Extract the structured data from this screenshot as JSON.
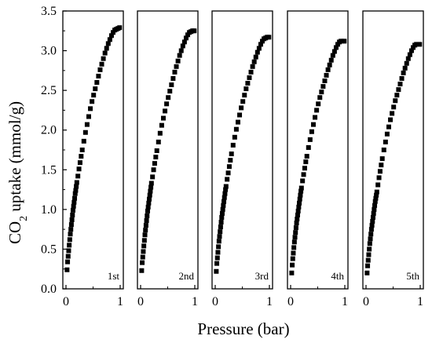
{
  "chart_data": {
    "type": "scatter",
    "ylabel_main": "CO",
    "ylabel_sub": "2",
    "ylabel_rest": " uptake (mmol/g)",
    "xlabel": "Pressure (bar)",
    "ylim": [
      0,
      3.5
    ],
    "xlim": [
      0,
      1
    ],
    "yticks": [
      "0.0",
      "0.5",
      "1.0",
      "1.5",
      "2.0",
      "2.5",
      "3.0",
      "3.5"
    ],
    "xticks": [
      "0",
      "1"
    ],
    "marker": "square",
    "grid": false,
    "panels": [
      {
        "label": "1st",
        "y_end": 3.29,
        "x": [
          0.02,
          0.03,
          0.04,
          0.05,
          0.06,
          0.07,
          0.08,
          0.09,
          0.1,
          0.11,
          0.12,
          0.13,
          0.14,
          0.15,
          0.16,
          0.17,
          0.18,
          0.19,
          0.2,
          0.22,
          0.24,
          0.26,
          0.28,
          0.3,
          0.33,
          0.36,
          0.39,
          0.42,
          0.45,
          0.48,
          0.51,
          0.54,
          0.57,
          0.6,
          0.63,
          0.66,
          0.69,
          0.72,
          0.75,
          0.78,
          0.81,
          0.84,
          0.87,
          0.9,
          0.93,
          0.96,
          0.99
        ],
        "y": [
          0.24,
          0.34,
          0.41,
          0.48,
          0.55,
          0.62,
          0.69,
          0.75,
          0.81,
          0.87,
          0.93,
          0.99,
          1.04,
          1.09,
          1.14,
          1.2,
          1.24,
          1.29,
          1.34,
          1.42,
          1.51,
          1.59,
          1.67,
          1.75,
          1.86,
          1.97,
          2.07,
          2.17,
          2.27,
          2.36,
          2.44,
          2.52,
          2.6,
          2.68,
          2.76,
          2.83,
          2.9,
          2.97,
          3.03,
          3.09,
          3.14,
          3.19,
          3.23,
          3.26,
          3.27,
          3.28,
          3.29
        ]
      },
      {
        "label": "2nd",
        "y_end": 3.25,
        "x": [
          0.02,
          0.03,
          0.04,
          0.05,
          0.06,
          0.07,
          0.08,
          0.09,
          0.1,
          0.11,
          0.12,
          0.13,
          0.14,
          0.15,
          0.16,
          0.17,
          0.18,
          0.19,
          0.2,
          0.22,
          0.24,
          0.26,
          0.28,
          0.3,
          0.33,
          0.36,
          0.39,
          0.42,
          0.45,
          0.48,
          0.51,
          0.54,
          0.57,
          0.6,
          0.63,
          0.66,
          0.69,
          0.72,
          0.75,
          0.78,
          0.81,
          0.84,
          0.87,
          0.9,
          0.93,
          0.96,
          0.99
        ],
        "y": [
          0.23,
          0.33,
          0.4,
          0.47,
          0.54,
          0.61,
          0.68,
          0.74,
          0.8,
          0.86,
          0.92,
          0.98,
          1.03,
          1.08,
          1.13,
          1.18,
          1.23,
          1.28,
          1.33,
          1.41,
          1.5,
          1.58,
          1.66,
          1.74,
          1.85,
          1.96,
          2.06,
          2.15,
          2.24,
          2.33,
          2.41,
          2.49,
          2.57,
          2.65,
          2.73,
          2.8,
          2.87,
          2.94,
          3.0,
          3.06,
          3.11,
          3.16,
          3.2,
          3.23,
          3.24,
          3.25,
          3.25
        ]
      },
      {
        "label": "3rd",
        "y_end": 3.17,
        "x": [
          0.02,
          0.03,
          0.04,
          0.05,
          0.06,
          0.07,
          0.08,
          0.09,
          0.1,
          0.11,
          0.12,
          0.13,
          0.14,
          0.15,
          0.16,
          0.17,
          0.18,
          0.19,
          0.2,
          0.22,
          0.24,
          0.26,
          0.28,
          0.3,
          0.33,
          0.36,
          0.39,
          0.42,
          0.45,
          0.48,
          0.51,
          0.54,
          0.57,
          0.6,
          0.63,
          0.66,
          0.69,
          0.72,
          0.75,
          0.78,
          0.81,
          0.84,
          0.87,
          0.9,
          0.93,
          0.96,
          0.99
        ],
        "y": [
          0.22,
          0.32,
          0.39,
          0.46,
          0.53,
          0.6,
          0.66,
          0.72,
          0.78,
          0.84,
          0.9,
          0.95,
          1.0,
          1.05,
          1.1,
          1.15,
          1.2,
          1.25,
          1.29,
          1.38,
          1.46,
          1.54,
          1.62,
          1.7,
          1.81,
          1.91,
          2.01,
          2.1,
          2.19,
          2.28,
          2.36,
          2.44,
          2.52,
          2.59,
          2.66,
          2.73,
          2.8,
          2.86,
          2.92,
          2.98,
          3.03,
          3.08,
          3.12,
          3.15,
          3.16,
          3.17,
          3.17
        ]
      },
      {
        "label": "4th",
        "y_end": 3.12,
        "x": [
          0.02,
          0.03,
          0.04,
          0.05,
          0.06,
          0.07,
          0.08,
          0.09,
          0.1,
          0.11,
          0.12,
          0.13,
          0.14,
          0.15,
          0.16,
          0.17,
          0.18,
          0.19,
          0.2,
          0.22,
          0.24,
          0.26,
          0.28,
          0.3,
          0.33,
          0.36,
          0.39,
          0.42,
          0.45,
          0.48,
          0.51,
          0.54,
          0.57,
          0.6,
          0.63,
          0.66,
          0.69,
          0.72,
          0.75,
          0.78,
          0.81,
          0.84,
          0.87,
          0.9,
          0.93,
          0.96,
          0.99
        ],
        "y": [
          0.2,
          0.3,
          0.38,
          0.45,
          0.52,
          0.59,
          0.65,
          0.71,
          0.77,
          0.83,
          0.88,
          0.93,
          0.98,
          1.03,
          1.08,
          1.13,
          1.18,
          1.23,
          1.27,
          1.36,
          1.44,
          1.52,
          1.6,
          1.67,
          1.78,
          1.88,
          1.98,
          2.07,
          2.16,
          2.25,
          2.33,
          2.41,
          2.48,
          2.55,
          2.62,
          2.69,
          2.76,
          2.82,
          2.88,
          2.94,
          2.99,
          3.04,
          3.08,
          3.11,
          3.12,
          3.12,
          3.12
        ]
      },
      {
        "label": "5th",
        "y_end": 3.08,
        "x": [
          0.02,
          0.03,
          0.04,
          0.05,
          0.06,
          0.07,
          0.08,
          0.09,
          0.1,
          0.11,
          0.12,
          0.13,
          0.14,
          0.15,
          0.16,
          0.17,
          0.18,
          0.19,
          0.2,
          0.22,
          0.24,
          0.26,
          0.28,
          0.3,
          0.33,
          0.36,
          0.39,
          0.42,
          0.45,
          0.48,
          0.51,
          0.54,
          0.57,
          0.6,
          0.63,
          0.66,
          0.69,
          0.72,
          0.75,
          0.78,
          0.81,
          0.84,
          0.87,
          0.9,
          0.93,
          0.96,
          0.99
        ],
        "y": [
          0.2,
          0.29,
          0.36,
          0.43,
          0.5,
          0.57,
          0.63,
          0.69,
          0.75,
          0.8,
          0.85,
          0.9,
          0.95,
          1.0,
          1.05,
          1.1,
          1.14,
          1.18,
          1.22,
          1.31,
          1.4,
          1.48,
          1.56,
          1.64,
          1.75,
          1.85,
          1.95,
          2.04,
          2.13,
          2.21,
          2.29,
          2.37,
          2.44,
          2.51,
          2.58,
          2.65,
          2.72,
          2.78,
          2.84,
          2.9,
          2.95,
          3.0,
          3.04,
          3.07,
          3.08,
          3.08,
          3.08
        ]
      }
    ]
  }
}
